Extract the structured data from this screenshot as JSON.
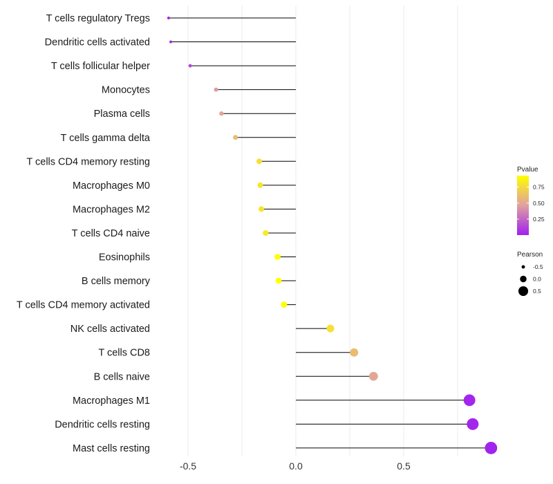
{
  "chart_data": {
    "type": "lollipop",
    "title": "",
    "xlabel": "",
    "ylabel": "",
    "xlim": [
      -0.6,
      0.91
    ],
    "x_ticks": [
      -0.5,
      0.0,
      0.5
    ],
    "x_tick_labels": [
      "-0.5",
      "0.0",
      "0.5"
    ],
    "categories": [
      "T cells regulatory  Tregs",
      "Dendritic cells activated",
      "T cells follicular helper",
      "Monocytes",
      "Plasma cells",
      "T cells gamma delta",
      "T cells CD4 memory resting",
      "Macrophages M0",
      "Macrophages M2",
      "T cells CD4 naive",
      "Eosinophils",
      "B cells memory",
      "T cells CD4 memory activated",
      "NK cells activated",
      "T cells CD8",
      "B cells naive",
      "Macrophages M1",
      "Dendritic cells resting",
      "Mast cells resting"
    ],
    "pearson": [
      -0.59,
      -0.58,
      -0.49,
      -0.37,
      -0.345,
      -0.28,
      -0.17,
      -0.165,
      -0.16,
      -0.14,
      -0.085,
      -0.08,
      -0.055,
      0.16,
      0.27,
      0.36,
      0.805,
      0.82,
      0.905
    ],
    "pvalue": [
      0.02,
      0.03,
      0.15,
      0.45,
      0.5,
      0.6,
      0.78,
      0.8,
      0.8,
      0.83,
      0.93,
      0.93,
      0.95,
      0.78,
      0.6,
      0.5,
      0.02,
      0.02,
      0.01
    ],
    "color_legend": {
      "title": "Pvalue",
      "ticks": [
        0.25,
        0.5,
        0.75
      ],
      "tick_labels": [
        "0.25",
        "0.50",
        "0.75"
      ],
      "range": [
        0.0,
        0.93
      ],
      "low_color": "#a020f0",
      "high_color": "#ffff00"
    },
    "size_legend": {
      "title": "Pearson",
      "values": [
        -0.5,
        0.0,
        0.5
      ],
      "labels": [
        "-0.5",
        "0.0",
        "0.5"
      ]
    },
    "grid": true
  }
}
